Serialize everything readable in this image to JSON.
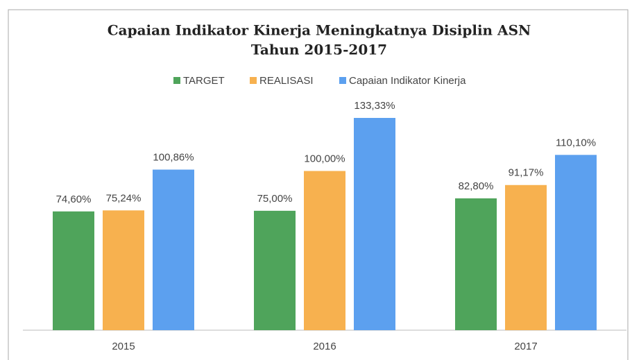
{
  "chart_data": {
    "type": "bar",
    "title": "Capaian Indikator Kinerja Meningkatnya Disiplin ASN",
    "subtitle": "Tahun 2015-2017",
    "categories": [
      "2015",
      "2016",
      "2017"
    ],
    "series": [
      {
        "name": "TARGET",
        "color": "#4fa45b",
        "values": [
          74.6,
          75.0,
          82.8
        ],
        "value_labels": [
          "74,60%",
          "75,00%",
          "82,80%"
        ]
      },
      {
        "name": "REALISASI",
        "color": "#f7b14f",
        "values": [
          75.24,
          100.0,
          91.17
        ],
        "value_labels": [
          "75,24%",
          "100,00%",
          "91,17%"
        ]
      },
      {
        "name": "Capaian Indikator Kinerja",
        "color": "#5ca0ef",
        "values": [
          100.86,
          133.33,
          110.1
        ],
        "value_labels": [
          "100,86%",
          "133,33%",
          "110,10%"
        ]
      }
    ],
    "legend": "top"
  }
}
